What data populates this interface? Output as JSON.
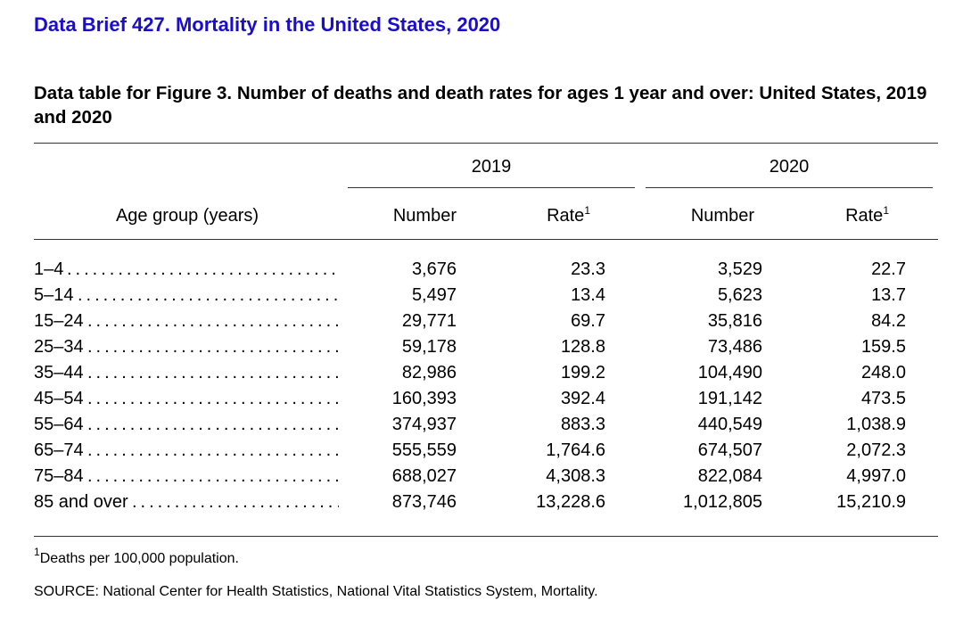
{
  "brief_title": "Data Brief 427. Mortality in the United States, 2020",
  "table_title": "Data table for Figure 3. Number of deaths and death rates for ages 1 year and over: United States, 2019 and 2020",
  "headers": {
    "year_2019": "2019",
    "year_2020": "2020",
    "age_group": "Age group (years)",
    "number": "Number",
    "rate": "Rate",
    "rate_footnote_mark": "1"
  },
  "leader_dots": "....................................",
  "rows": [
    {
      "age": "1–4",
      "n2019": "3,676",
      "r2019": "23.3",
      "n2020": "3,529",
      "r2020": "22.7"
    },
    {
      "age": "5–14",
      "n2019": "5,497",
      "r2019": "13.4",
      "n2020": "5,623",
      "r2020": "13.7"
    },
    {
      "age": "15–24",
      "n2019": "29,771",
      "r2019": "69.7",
      "n2020": "35,816",
      "r2020": "84.2"
    },
    {
      "age": "25–34",
      "n2019": "59,178",
      "r2019": "128.8",
      "n2020": "73,486",
      "r2020": "159.5"
    },
    {
      "age": "35–44",
      "n2019": "82,986",
      "r2019": "199.2",
      "n2020": "104,490",
      "r2020": "248.0"
    },
    {
      "age": "45–54",
      "n2019": "160,393",
      "r2019": "392.4",
      "n2020": "191,142",
      "r2020": "473.5"
    },
    {
      "age": "55–64",
      "n2019": "374,937",
      "r2019": "883.3",
      "n2020": "440,549",
      "r2020": "1,038.9"
    },
    {
      "age": "65–74",
      "n2019": "555,559",
      "r2019": "1,764.6",
      "n2020": "674,507",
      "r2020": "2,072.3"
    },
    {
      "age": "75–84",
      "n2019": "688,027",
      "r2019": "4,308.3",
      "n2020": "822,084",
      "r2020": "4,997.0"
    },
    {
      "age": "85 and over",
      "n2019": "873,746",
      "r2019": "13,228.6",
      "n2020": "1,012,805",
      "r2020": "15,210.9"
    }
  ],
  "footnote": {
    "mark": "1",
    "text": "Deaths per 100,000 population."
  },
  "source": "SOURCE: National Center for Health Statistics, National Vital Statistics System, Mortality."
}
